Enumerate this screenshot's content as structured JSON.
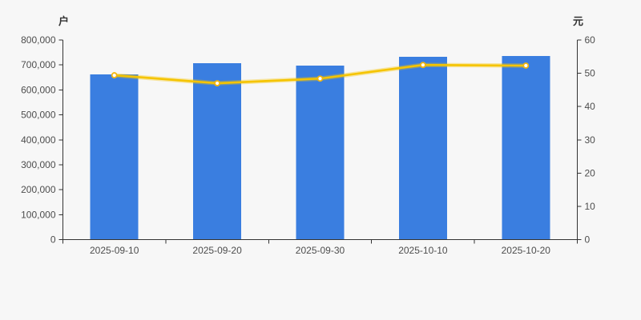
{
  "page": {
    "background_color": "#f7f7f7"
  },
  "chart_data": {
    "type": "bar+line",
    "title": "",
    "categories": [
      "2025-09-10",
      "2025-09-20",
      "2025-09-30",
      "2025-10-10",
      "2025-10-20"
    ],
    "series": [
      {
        "kind": "bar",
        "y_axis": "left",
        "values": [
          662000,
          707000,
          697000,
          732000,
          736000
        ],
        "color": "#3a7ee0"
      },
      {
        "kind": "line",
        "y_axis": "right",
        "values": [
          49.4,
          47.0,
          48.4,
          52.5,
          52.3
        ],
        "color": "#f5c400",
        "marker_fill": "#ffffff",
        "marker_stroke": "#f2b50e"
      }
    ],
    "left_axis": {
      "name": "户",
      "min": 0,
      "max": 800000,
      "tick_labels": [
        "800,000",
        "700,000",
        "600,000",
        "500,000",
        "400,000",
        "300,000",
        "200,000",
        "100,000",
        "0"
      ]
    },
    "right_axis": {
      "name": "元",
      "min": 0,
      "max": 60,
      "tick_labels": [
        "60",
        "50",
        "40",
        "30",
        "20",
        "10",
        "0"
      ]
    },
    "x_axis": {
      "tick_labels": [
        "2025-09-10",
        "2025-09-20",
        "2025-09-30",
        "2025-10-10",
        "2025-10-20"
      ]
    },
    "grid": false,
    "legend": false,
    "axis_color": "#333333",
    "label_color": "#4d4d4d"
  }
}
